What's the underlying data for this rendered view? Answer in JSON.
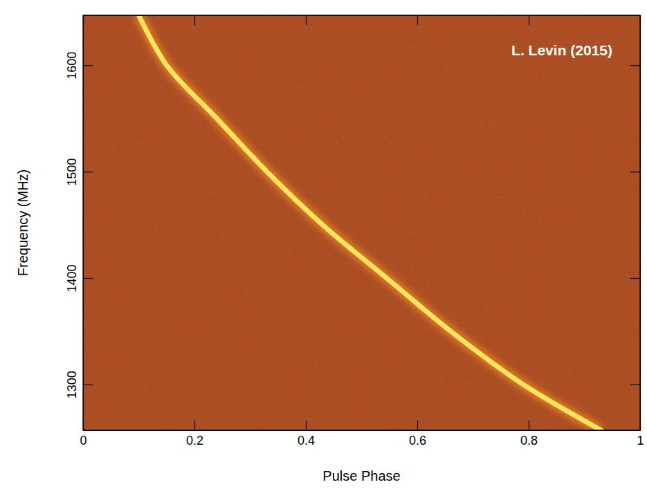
{
  "chart_data": {
    "type": "line",
    "annotation": "L. Levin (2015)",
    "xlabel": "Pulse Phase",
    "ylabel": "Frequency (MHz)",
    "x": [
      0.1,
      0.15,
      0.24,
      0.33,
      0.43,
      0.545,
      0.66,
      0.79,
      0.93
    ],
    "values": [
      1647,
      1600,
      1550,
      1500,
      1450,
      1400,
      1350,
      1300,
      1257
    ],
    "color": "#ffe45c",
    "xlim": [
      0,
      1
    ],
    "xticks": [
      0,
      0.2,
      0.4,
      0.6,
      0.8,
      1
    ],
    "ylim": [
      1257,
      1647
    ],
    "yticks": [
      1300,
      1400,
      1500,
      1600
    ],
    "grid": false
  }
}
